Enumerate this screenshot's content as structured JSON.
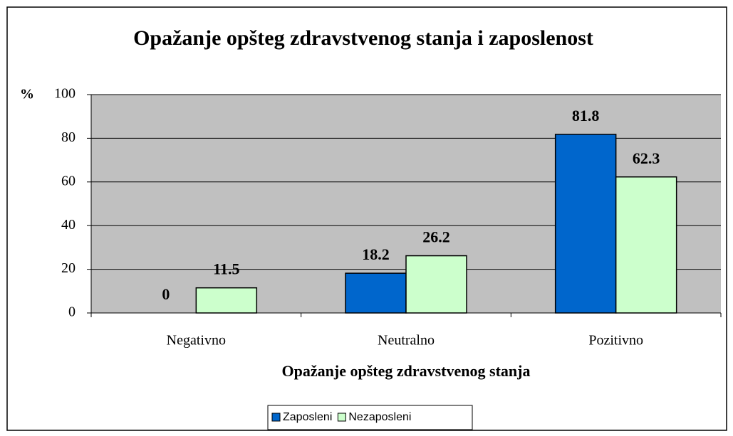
{
  "chart_data": {
    "type": "bar",
    "title": "Opažanje opšteg zdravstvenog stanja i zaposlenost",
    "y_label": "%",
    "x_label": "Opažanje opšteg zdravstvenog stanja",
    "categories": [
      "Negativno",
      "Neutralno",
      "Pozitivno"
    ],
    "series": [
      {
        "name": "Zaposleni",
        "color": "#0066cc",
        "values": [
          0,
          18.2,
          81.8
        ]
      },
      {
        "name": "Nezaposleni",
        "color": "#ccffcc",
        "values": [
          11.5,
          26.2,
          62.3
        ]
      }
    ],
    "ylim": [
      0,
      100
    ],
    "yticks": [
      0,
      20,
      40,
      60,
      80,
      100
    ],
    "grid": true,
    "plot_background": "#c0c0c0",
    "legend": "bottom"
  }
}
